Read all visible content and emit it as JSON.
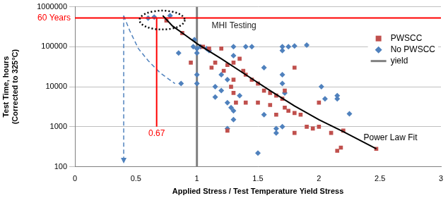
{
  "chart_data": {
    "type": "scatter",
    "x_label": "Applied Stress / Test Temperature Yield Stress",
    "y_label": [
      "Test Time, hours",
      "(Corrected to 325°C)"
    ],
    "log": "y",
    "grid": "y",
    "legend": "right",
    "xlim": [
      0,
      3
    ],
    "xticks": [
      0,
      0.5,
      1,
      1.5,
      2,
      2.5,
      3
    ],
    "ylim": [
      100,
      1000000
    ],
    "yticks": [
      100,
      1000,
      10000,
      100000,
      1000000
    ],
    "series": [
      {
        "name": "PWSCC",
        "color": "#c0504d",
        "marker": "square",
        "x": [
          0.75,
          0.88,
          0.95,
          1.05,
          1.1,
          1.12,
          1.15,
          1.2,
          1.22,
          1.25,
          1.28,
          1.3,
          1.3,
          1.32,
          1.35,
          1.38,
          1.4,
          1.45,
          1.5,
          1.55,
          1.6,
          1.65,
          1.7,
          1.65,
          1.72,
          1.75,
          1.8,
          1.8,
          1.8,
          1.85,
          1.9,
          1.95,
          2.0,
          2.0,
          2.1,
          2.15,
          2.18,
          2.2,
          2.47,
          1.25,
          1.4,
          1.3,
          1.72,
          1.5,
          1.6
        ],
        "y": [
          450000,
          220000,
          40000,
          100000,
          90000,
          30000,
          40000,
          90000,
          25000,
          35000,
          10000,
          7000,
          15000,
          4000,
          50000,
          25000,
          20000,
          15000,
          12000,
          8000,
          7000,
          6000,
          5000,
          2000,
          3000,
          2500,
          30000,
          2200,
          700,
          2000,
          1000,
          900,
          4000,
          1000,
          700,
          250,
          300,
          800,
          280,
          800,
          4000,
          40000,
          8000,
          4000,
          3500
        ]
      },
      {
        "name": "No PWSCC",
        "color": "#4f81bd",
        "marker": "diamond",
        "x": [
          0.6,
          0.65,
          0.78,
          0.85,
          0.87,
          0.97,
          0.98,
          1.0,
          1.0,
          1.0,
          1.0,
          1.03,
          1.08,
          1.1,
          1.15,
          1.15,
          1.2,
          1.2,
          1.25,
          1.25,
          1.25,
          1.28,
          1.3,
          1.3,
          1.3,
          1.3,
          1.35,
          1.4,
          1.45,
          1.5,
          1.55,
          1.65,
          1.7,
          1.7,
          1.7,
          1.7,
          1.72,
          1.7,
          1.75,
          1.8,
          1.9,
          2.02,
          2.05,
          2.15,
          2.15,
          2.25,
          1.65,
          1.55
        ],
        "y": [
          520000,
          550000,
          600000,
          70000,
          12000,
          100000,
          150000,
          90000,
          70000,
          20000,
          12000,
          100000,
          90000,
          80000,
          10000,
          5500,
          8000,
          20000,
          15000,
          4000,
          900,
          3000,
          100000,
          60000,
          2500,
          1500,
          6000,
          100000,
          100000,
          220,
          30000,
          700,
          100000,
          80000,
          20000,
          12000,
          7000,
          1000,
          100000,
          105000,
          110000,
          10000,
          5000,
          6000,
          5000,
          2100,
          900,
          2000
        ]
      },
      {
        "name": "yield",
        "color": "#808080",
        "type": "line",
        "line_style": "solid",
        "x": [
          1,
          1
        ],
        "y": [
          100,
          1000000
        ]
      }
    ],
    "lines": [
      {
        "label": "Power Law Fit",
        "color": "#000000",
        "line_style": "solid",
        "x": [
          0.72,
          0.8,
          0.9,
          1.0,
          1.2,
          1.4,
          1.6,
          1.8,
          2.0,
          2.2,
          2.47
        ],
        "y": [
          600000,
          330000,
          200000,
          120000,
          50000,
          20000,
          8000,
          3300,
          1500,
          750,
          280
        ]
      },
      {
        "label": "60 Years",
        "color": "#ff0000",
        "line_style": "solid",
        "x": [
          0,
          3
        ],
        "y": [
          525600,
          525600
        ]
      },
      {
        "label": "0.67",
        "color": "#ff0000",
        "line_style": "solid",
        "x": [
          0.67,
          0.67
        ],
        "y": [
          1000,
          525600
        ]
      },
      {
        "color": "#4f81bd",
        "line_style": "dashed",
        "x": [
          0.4,
          0.45,
          0.52,
          0.6,
          0.7,
          0.82
        ],
        "y": [
          600000,
          250000,
          90000,
          45000,
          22000,
          12000
        ]
      },
      {
        "color": "#4f81bd",
        "line_style": "dashed",
        "marker": "arrow",
        "x": [
          0.4,
          0.4
        ],
        "y": [
          600000,
          120
        ]
      }
    ],
    "shapes": [
      {
        "shape": "ellipse",
        "color": "#000000",
        "line_style": "dotted",
        "x": [
          0.53,
          0.9
        ],
        "y": [
          270000,
          800000
        ]
      }
    ],
    "texts": [
      {
        "text": "MHI Testing",
        "x": 1.12,
        "y": 340000
      }
    ]
  }
}
